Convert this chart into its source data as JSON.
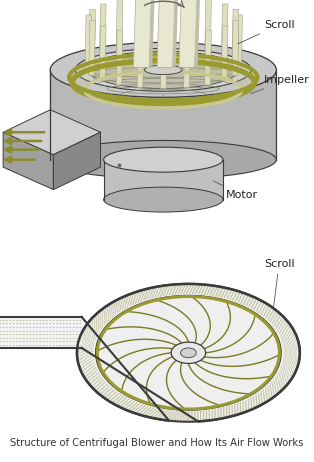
{
  "title": "Structure of Centrifugal Blower and How Its Air Flow Works",
  "title_fontsize": 7.2,
  "bg_color": "#ffffff",
  "arrow_color": "#8b8b2b",
  "outline_color": "#3a3a3a",
  "scroll_label_3d": "Scroll",
  "impeller_label": "Impeller",
  "motor_label": "Motor",
  "scroll_label_2d": "Scroll",
  "blade_color_3d": "#c8c89a",
  "olive_ring": "#9a9a30",
  "dashed_dot_color": "#b8b890",
  "gray_body": "#c0c0c0",
  "gray_light": "#d8d8d8",
  "gray_dark": "#909090",
  "gray_mid": "#b0b0b0"
}
